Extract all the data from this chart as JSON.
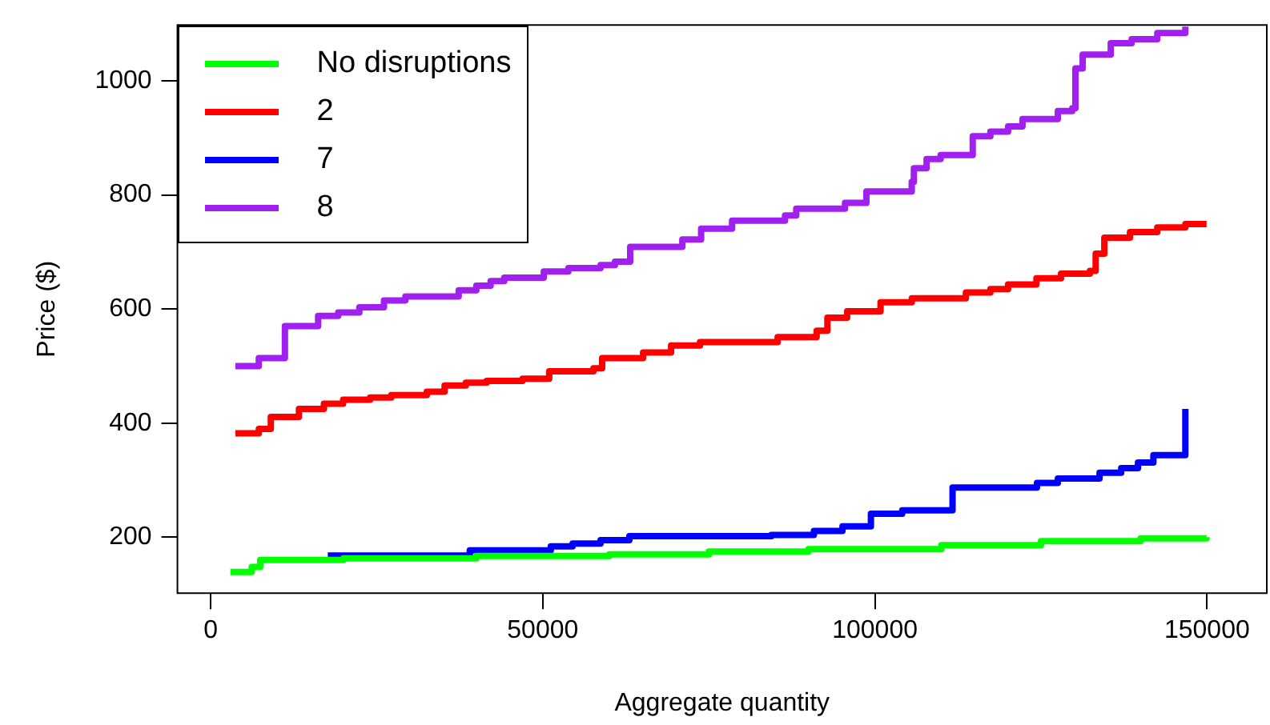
{
  "chart_data": {
    "type": "step",
    "xlabel": "Aggregate quantity",
    "ylabel": "Price ($)",
    "xlim": [
      -5000,
      159000
    ],
    "ylim": [
      102,
      1098
    ],
    "xticks": [
      0,
      50000,
      100000,
      150000
    ],
    "yticks": [
      200,
      400,
      600,
      800,
      1000
    ],
    "grid": false,
    "legend": "top left",
    "marker": "none",
    "line_style": "solid",
    "series": [
      {
        "name": "No disruptions",
        "color": "#00ff00",
        "x": [
          2970,
          6180,
          7460,
          20000,
          40000,
          60000,
          75000,
          90000,
          110000,
          125000,
          140000,
          149930
        ],
        "values": [
          139,
          148,
          160,
          163,
          167,
          170,
          175,
          179,
          186,
          193,
          198,
          200
        ]
      },
      {
        "name": "2",
        "color": "#ff0000",
        "x": [
          3720,
          7250,
          9060,
          13290,
          17050,
          19950,
          24010,
          27200,
          32540,
          35220,
          38410,
          41550,
          46960,
          50970,
          57630,
          58940,
          65100,
          69320,
          73670,
          85360,
          91230,
          92850,
          95820,
          100850,
          105560,
          113700,
          117390,
          120050,
          124320,
          128020,
          132370,
          133240,
          134540,
          138400,
          142510,
          146740,
          149930
        ],
        "values": [
          382,
          390,
          411,
          425,
          434,
          441,
          445,
          449,
          455,
          466,
          471,
          474,
          478,
          491,
          496,
          514,
          524,
          536,
          542,
          551,
          562,
          585,
          596,
          612,
          619,
          629,
          635,
          643,
          654,
          662,
          667,
          697,
          725,
          735,
          743,
          749,
          749
        ]
      },
      {
        "name": "7",
        "color": "#0000ff",
        "x": [
          17630,
          39010,
          51210,
          54490,
          58700,
          63040,
          84420,
          90820,
          95120,
          99400,
          104110,
          111690,
          124400,
          127540,
          133820,
          137080,
          139610,
          141930,
          146740,
          146740
        ],
        "values": [
          168,
          177,
          184,
          189,
          195,
          202,
          204,
          211,
          219,
          241,
          247,
          287,
          295,
          303,
          313,
          321,
          331,
          344,
          344,
          425
        ]
      },
      {
        "name": "8",
        "color": "#a020f0",
        "x": [
          3720,
          7250,
          11180,
          16180,
          19200,
          22390,
          26090,
          29320,
          37340,
          40000,
          42150,
          44200,
          50150,
          53860,
          58700,
          60870,
          63160,
          71010,
          73840,
          78500,
          86470,
          88160,
          95500,
          98720,
          105550,
          105870,
          107780,
          109900,
          114730,
          117390,
          120050,
          122220,
          127540,
          129710,
          130190,
          131280,
          135510,
          138650,
          142510,
          146740,
          146740
        ],
        "values": [
          500,
          514,
          570,
          588,
          594,
          603,
          615,
          622,
          633,
          641,
          649,
          655,
          666,
          672,
          677,
          683,
          709,
          722,
          741,
          755,
          764,
          776,
          786,
          806,
          823,
          847,
          863,
          870,
          903,
          911,
          920,
          933,
          947,
          952,
          1022,
          1046,
          1066,
          1073,
          1084,
          1084,
          1095
        ]
      }
    ]
  }
}
